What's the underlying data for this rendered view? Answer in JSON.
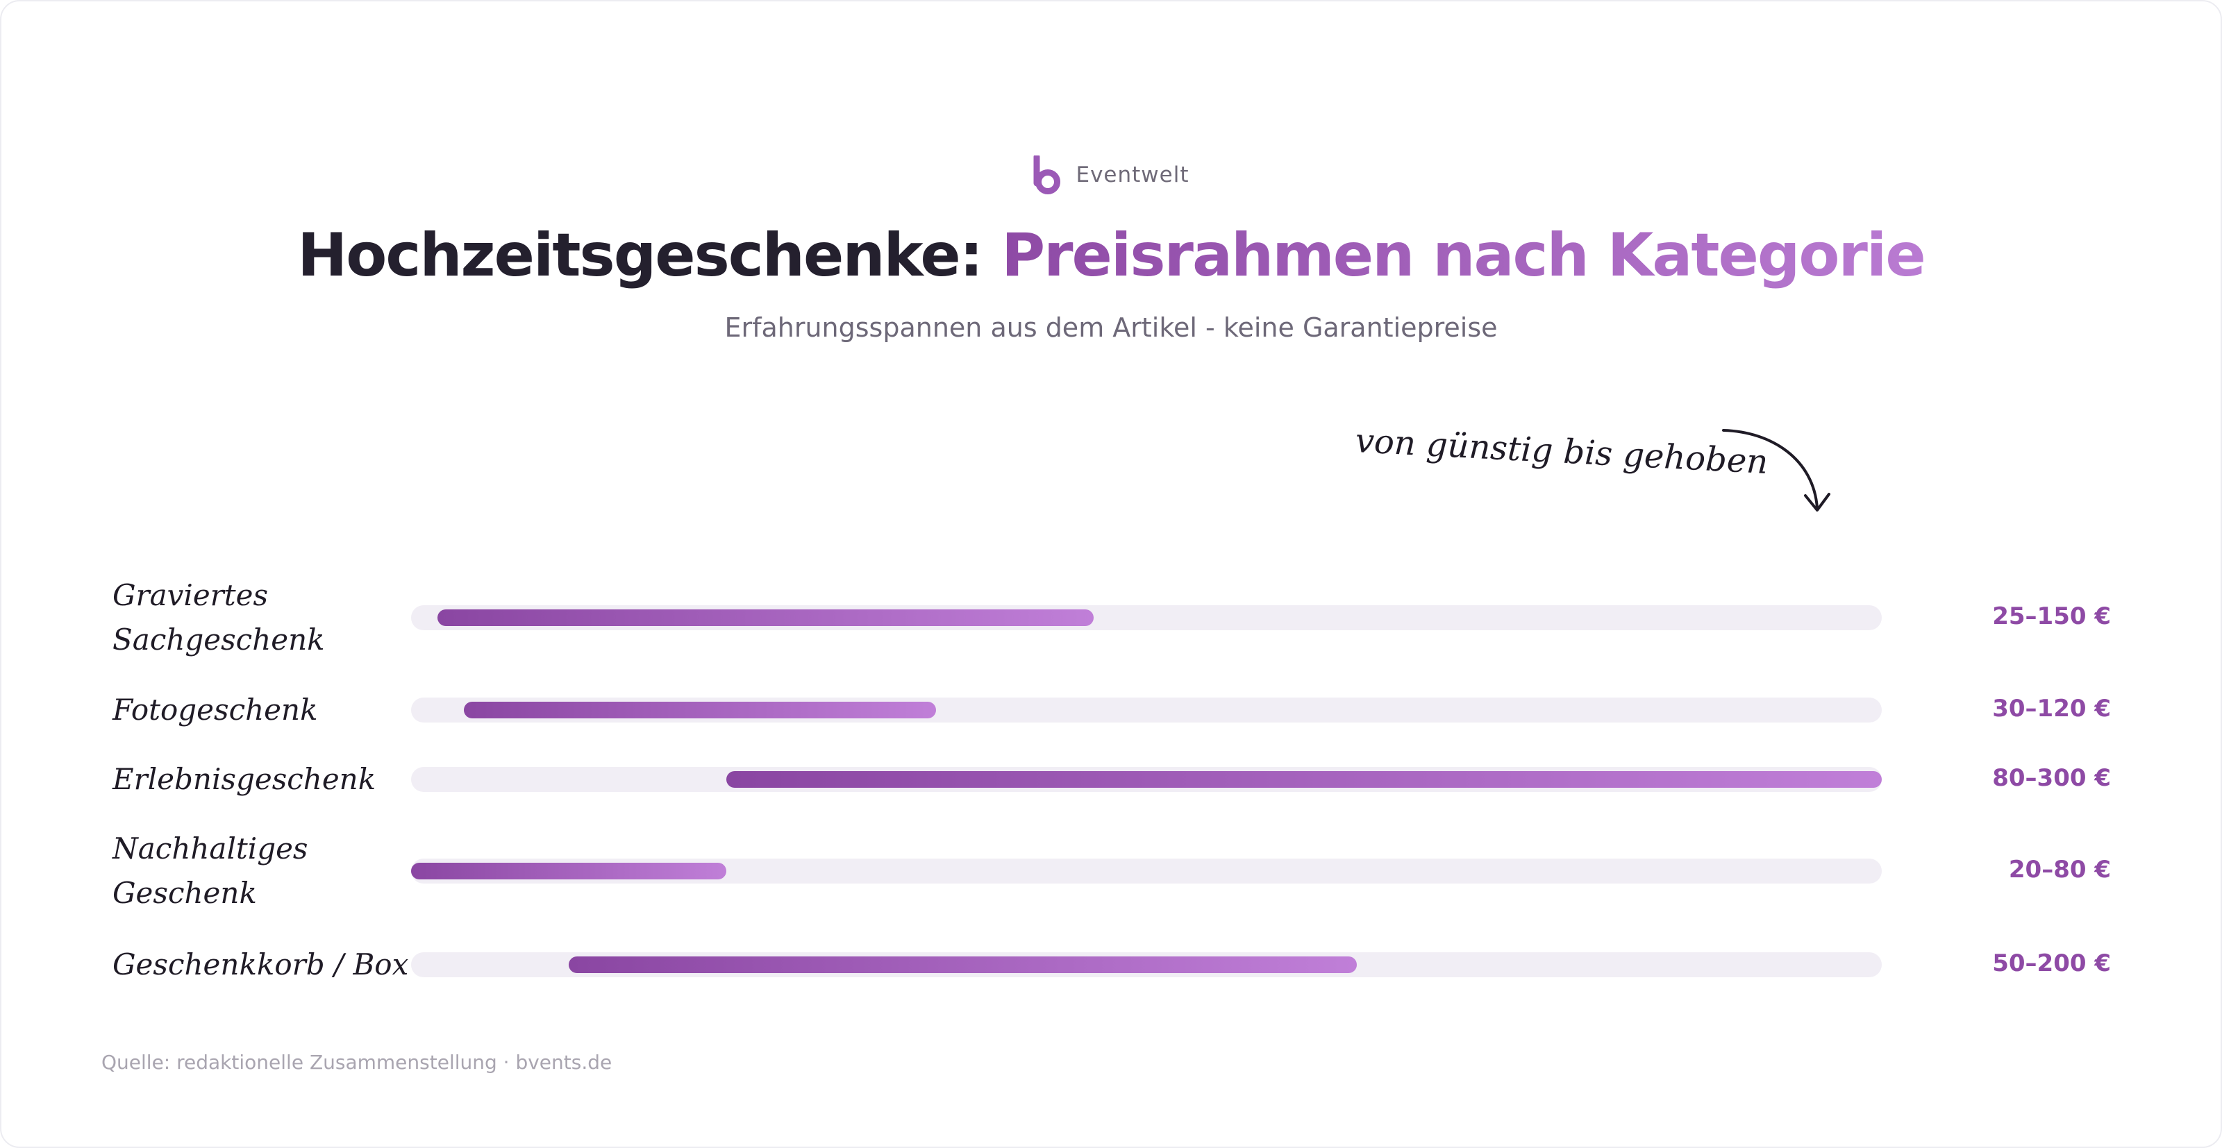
{
  "brand": {
    "name": "Eventwelt",
    "logo_icon": "b-logo-icon",
    "color": "#9b59b6"
  },
  "header": {
    "title_part1": "Hochzeitsgeschenke: ",
    "title_part2": "Preisrahmen nach Kategorie",
    "subtitle": "Erfahrungsspannen aus dem Artikel - keine Garantiepreise"
  },
  "annotation": {
    "text": "von günstig bis gehoben",
    "icon": "curved-arrow-icon"
  },
  "source": "Quelle: redaktionelle Zusammenstellung · bvents.de",
  "colors": {
    "title": "#24202e",
    "accent_start": "#8a46a2",
    "accent_end": "#c07fd8",
    "track": "#f1eef5",
    "value_text": "#8e4aa5"
  },
  "chart_data": {
    "type": "range-bar",
    "title": "Hochzeitsgeschenke: Preisrahmen nach Kategorie",
    "subtitle": "Erfahrungsspannen aus dem Artikel - keine Garantiepreise",
    "unit": "€",
    "xlim": [
      20,
      300
    ],
    "grid": false,
    "categories": [
      "Graviertes Sachgeschenk",
      "Fotogeschenk",
      "Erlebnisgeschenk",
      "Nachhaltiges Geschenk",
      "Geschenkkorb / Box"
    ],
    "ranges": [
      {
        "min": 25,
        "max": 150,
        "label": "25–150 €"
      },
      {
        "min": 30,
        "max": 120,
        "label": "30–120 €"
      },
      {
        "min": 80,
        "max": 300,
        "label": "80–300 €"
      },
      {
        "min": 20,
        "max": 80,
        "label": "20–80 €"
      },
      {
        "min": 50,
        "max": 200,
        "label": "50–200 €"
      }
    ]
  }
}
